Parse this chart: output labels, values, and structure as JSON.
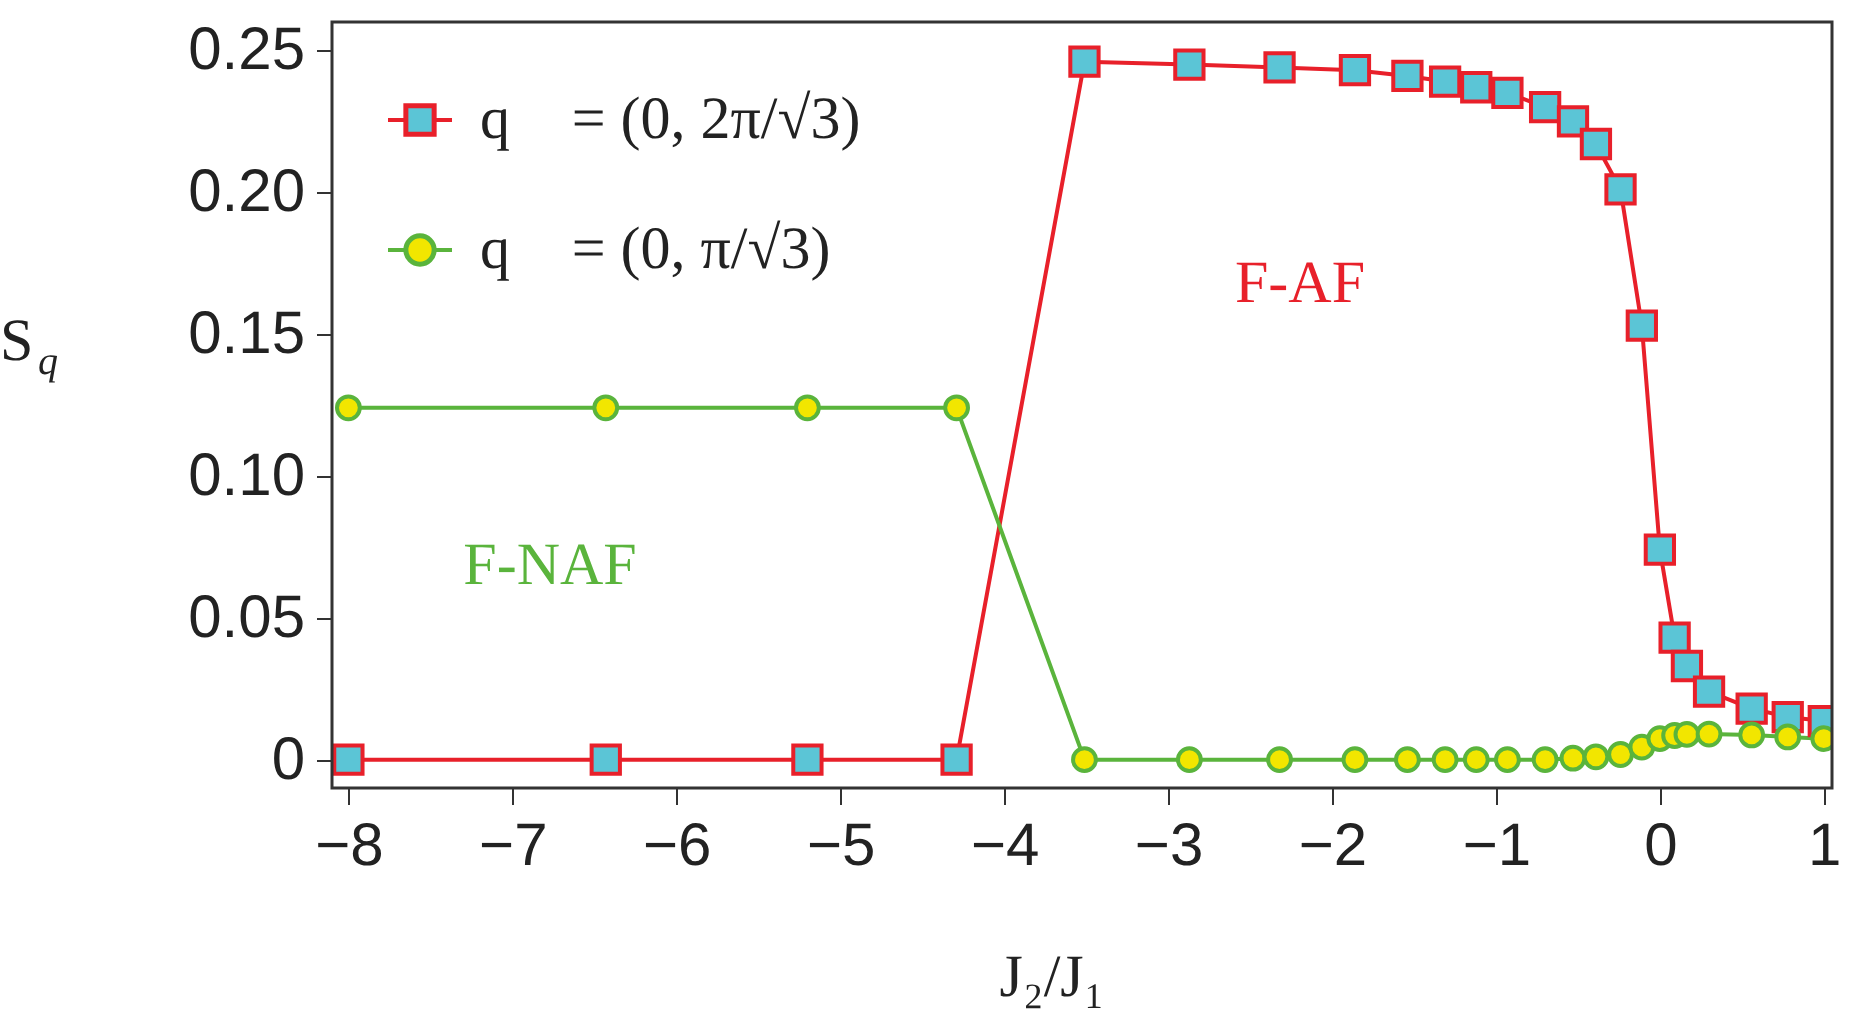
{
  "chart_data": {
    "type": "line",
    "xlabel": "J₂/J₁",
    "ylabel": "S$_{q⃗}$",
    "x": [
      -8,
      -6.43,
      -5.2,
      -4.29,
      -3.51,
      -2.87,
      -2.32,
      -1.86,
      -1.54,
      -1.31,
      -1.12,
      -0.93,
      -0.7,
      -0.53,
      -0.39,
      -0.24,
      -0.11,
      0.0,
      0.09,
      0.165,
      0.3,
      0.56,
      0.78,
      1.0
    ],
    "series": [
      {
        "name": "q⃗ = (0, 2π/√3)",
        "color": "#e8202a",
        "marker": "square",
        "values": [
          0,
          0,
          0,
          0,
          0.246,
          0.245,
          0.244,
          0.243,
          0.241,
          0.239,
          0.237,
          0.235,
          0.23,
          0.225,
          0.217,
          0.201,
          0.153,
          0.074,
          0.043,
          0.033,
          0.024,
          0.018,
          0.015,
          0.0136
        ]
      },
      {
        "name": "q⃗ = (0, π/√3)",
        "color": "#5ab43c",
        "marker": "circle",
        "values": [
          0.124,
          0.124,
          0.124,
          0.124,
          0,
          0,
          0,
          0,
          0,
          0,
          0,
          0,
          0,
          0.0005,
          0.001,
          0.0018,
          0.0044,
          0.0074,
          0.0085,
          0.0089,
          0.009,
          0.0087,
          0.008,
          0.0074
        ]
      }
    ],
    "annotations": [
      "F-AF",
      "F-NAF"
    ],
    "xlim": [
      -8.1,
      1.05
    ],
    "xticks": [
      -8,
      -7,
      -6,
      -5,
      -4,
      -3,
      -2,
      -1,
      0,
      1
    ],
    "ylim": [
      -0.01,
      0.26
    ],
    "yticks": [
      0,
      0.05,
      {
        "value": 0.1,
        "label": "0.10"
      },
      0.15,
      {
        "value": 0.2,
        "label": "0.20"
      },
      0.25
    ],
    "legend": "top left",
    "grid": false,
    "line_style": "solid"
  }
}
